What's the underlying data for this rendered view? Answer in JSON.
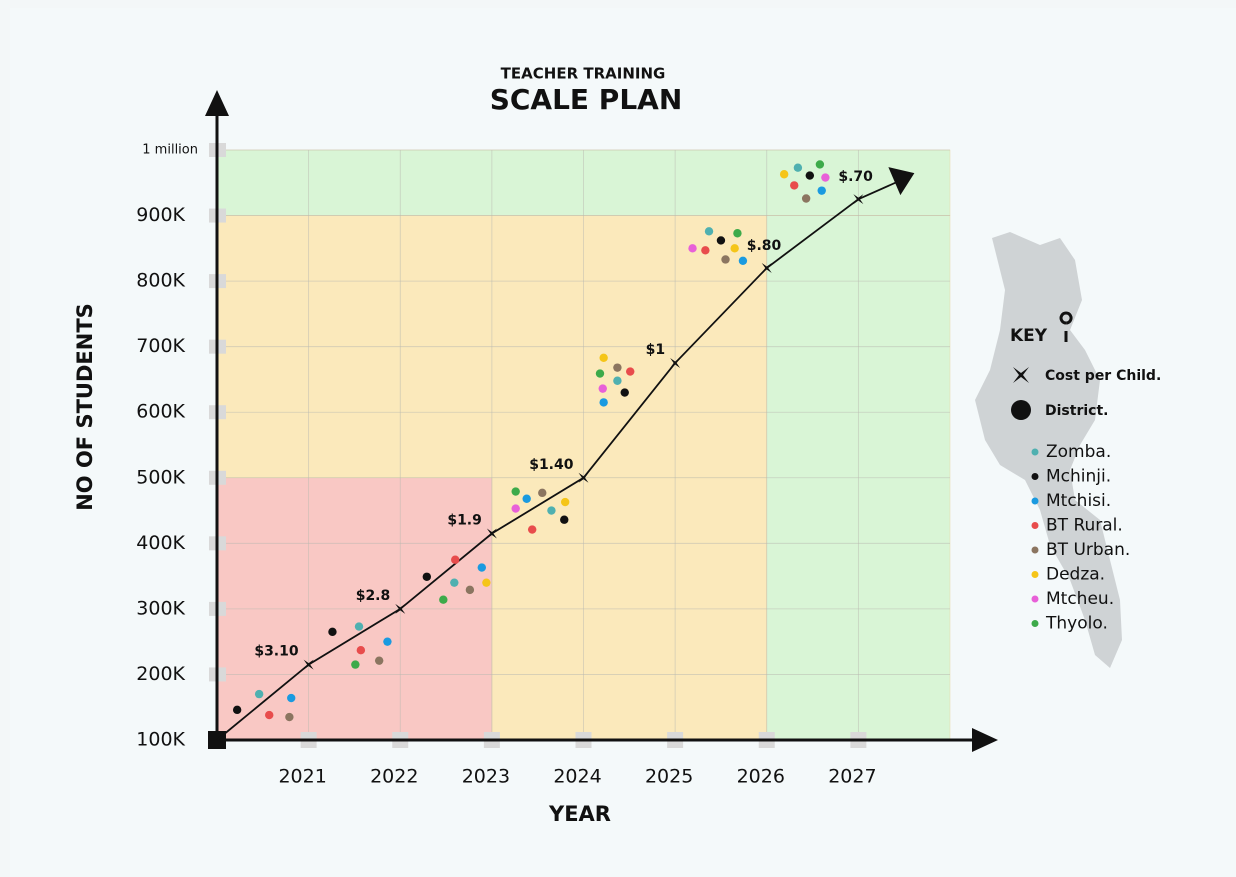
{
  "chart_data": {
    "type": "line",
    "subtitle": "TEACHER TRAINING",
    "title": "SCALE PLAN",
    "x_label": "YEAR",
    "y_label": "NO OF STUDENTS",
    "xlim": [
      2020,
      2028
    ],
    "ylim": [
      100000,
      1000000
    ],
    "xticks": [
      2021,
      2022,
      2023,
      2024,
      2025,
      2026,
      2027
    ],
    "yticks": [
      {
        "value": 100000,
        "label": "100K"
      },
      {
        "value": 200000,
        "label": "200K"
      },
      {
        "value": 300000,
        "label": "300K"
      },
      {
        "value": 400000,
        "label": "400K"
      },
      {
        "value": 500000,
        "label": "500K"
      },
      {
        "value": 600000,
        "label": "600K"
      },
      {
        "value": 700000,
        "label": "700K"
      },
      {
        "value": 800000,
        "label": "800K"
      },
      {
        "value": 900000,
        "label": "900K"
      },
      {
        "value": 1000000,
        "label": "1 million"
      }
    ],
    "grid": true,
    "zones": [
      {
        "x": [
          2020,
          2028
        ],
        "y": [
          900000,
          1000000
        ],
        "color": "#d9f5d6"
      },
      {
        "x": [
          2026,
          2028
        ],
        "y": [
          100000,
          900000
        ],
        "color": "#d9f5d6"
      },
      {
        "x": [
          2020,
          2026
        ],
        "y": [
          500000,
          900000
        ],
        "color": "#fbe9bb"
      },
      {
        "x": [
          2023,
          2026
        ],
        "y": [
          100000,
          500000
        ],
        "color": "#fbe9bb"
      },
      {
        "x": [
          2020,
          2023
        ],
        "y": [
          100000,
          500000
        ],
        "color": "#f9c8c4"
      }
    ],
    "cost": {
      "name": "Cost per Child.",
      "color": "#111111",
      "x": [
        2020,
        2021,
        2022,
        2023,
        2024,
        2025,
        2026,
        2027
      ],
      "values": [
        100000,
        215000,
        300000,
        415000,
        500000,
        675000,
        820000,
        925000
      ],
      "value_labels": [
        null,
        "$3.10",
        "$2.8",
        "$1.9",
        "$1.40",
        "$1",
        "$.80",
        "$.70"
      ]
    },
    "districts": {
      "name": "District.",
      "series": [
        {
          "name": "Zomba.",
          "color": "#4fb0b0",
          "x": [
            2020.46,
            2021.55,
            2022.59,
            2023.65,
            2024.37,
            2025.37,
            2026.34
          ],
          "values": [
            170000,
            273000,
            340000,
            450000,
            648000,
            876000,
            973000
          ]
        },
        {
          "name": "Mchinji.",
          "color": "#111111",
          "x": [
            2020.22,
            2021.26,
            2022.29,
            2023.79,
            2024.45,
            2025.5,
            2026.47
          ],
          "values": [
            146000,
            265000,
            349000,
            436000,
            630000,
            862000,
            961000
          ]
        },
        {
          "name": "Mtchisi.",
          "color": "#1a9ae0",
          "x": [
            2020.81,
            2021.86,
            2022.89,
            2023.38,
            2024.22,
            2025.74,
            2026.6
          ],
          "values": [
            164000,
            250000,
            363000,
            468000,
            615000,
            831000,
            938000
          ]
        },
        {
          "name": "BT Rural.",
          "color": "#e84c4c",
          "x": [
            2020.57,
            2021.57,
            2022.6,
            2023.44,
            2024.51,
            2025.33,
            2026.3
          ],
          "values": [
            138000,
            237000,
            375000,
            421000,
            662000,
            847000,
            946000
          ]
        },
        {
          "name": "BT Urban.",
          "color": "#8b7560",
          "x": [
            2020.79,
            2021.77,
            2022.76,
            2023.55,
            2024.37,
            2025.55,
            2026.43
          ],
          "values": [
            135000,
            221000,
            329000,
            477000,
            668000,
            833000,
            926000
          ]
        },
        {
          "name": "Dedza.",
          "color": "#f5c518",
          "x": [
            2022.94,
            2023.8,
            2024.22,
            2025.65,
            2026.19
          ],
          "values": [
            340000,
            463000,
            683000,
            850000,
            963000
          ]
        },
        {
          "name": "Mtcheu.",
          "color": "#e860d8",
          "x": [
            2023.26,
            2024.21,
            2025.19,
            2026.64
          ],
          "values": [
            453000,
            636000,
            850000,
            958000
          ]
        },
        {
          "name": "Thyolo.",
          "color": "#3daa4a",
          "x": [
            2021.51,
            2022.47,
            2023.26,
            2024.18,
            2025.68,
            2026.58
          ],
          "values": [
            215000,
            314000,
            479000,
            659000,
            873000,
            978000
          ]
        }
      ]
    },
    "legend": {
      "title": "KEY",
      "position": "right"
    }
  }
}
